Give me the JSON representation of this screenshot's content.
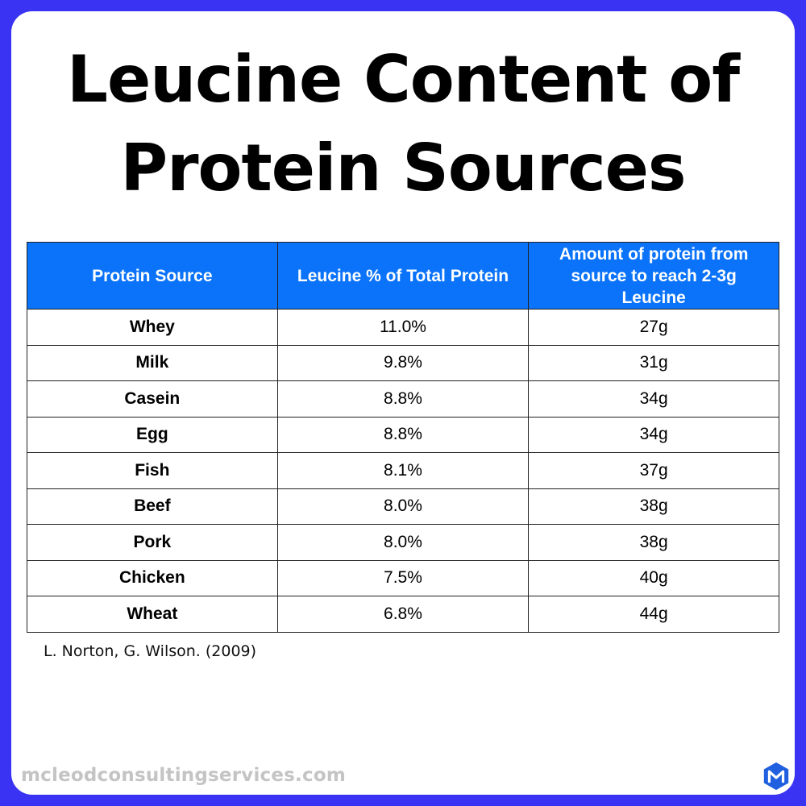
{
  "title": "Leucine Content of Protein Sources",
  "table": {
    "headers": [
      "Protein Source",
      "Leucine % of Total Protein",
      "Amount of protein from source to reach 2-3g Leucine"
    ],
    "rows": [
      {
        "source": "Whey",
        "leucine_pct": "11.0%",
        "amount": "27g"
      },
      {
        "source": "Milk",
        "leucine_pct": "9.8%",
        "amount": "31g"
      },
      {
        "source": "Casein",
        "leucine_pct": "8.8%",
        "amount": "34g"
      },
      {
        "source": "Egg",
        "leucine_pct": "8.8%",
        "amount": "34g"
      },
      {
        "source": "Fish",
        "leucine_pct": "8.1%",
        "amount": "37g"
      },
      {
        "source": "Beef",
        "leucine_pct": "8.0%",
        "amount": "38g"
      },
      {
        "source": "Pork",
        "leucine_pct": "8.0%",
        "amount": "38g"
      },
      {
        "source": "Chicken",
        "leucine_pct": "7.5%",
        "amount": "40g"
      },
      {
        "source": "Wheat",
        "leucine_pct": "6.8%",
        "amount": "44g"
      }
    ]
  },
  "citation": "L. Norton, G. Wilson. (2009)",
  "footer": {
    "url": "mcleodconsultingservices.com",
    "logo_icon": "hexagon-m-logo-icon"
  },
  "colors": {
    "frame": "#3a33f4",
    "header_bg": "#0a73f9",
    "header_text": "#ffffff",
    "footer_text": "#c4c4c4",
    "logo": "#1f5fe0"
  }
}
